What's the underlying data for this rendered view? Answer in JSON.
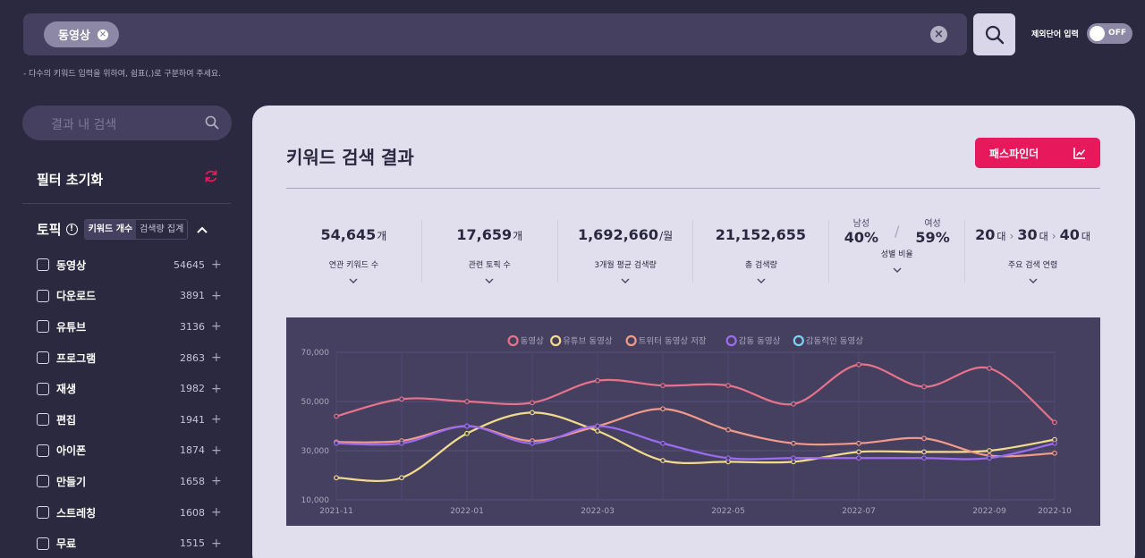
{
  "search": {
    "tag": "동영상",
    "hint": "- 다수의 키워드 입력을 위하여, 쉼표(,)로 구분하여 주세요.",
    "exclude_label": "제외단어 입력",
    "toggle_state": "OFF"
  },
  "sidebar": {
    "search_placeholder": "결과 내 검색",
    "filter_reset": "필터 초기화",
    "topic_title": "토픽",
    "seg_keyword": "키워드 개수",
    "seg_volume": "검색량 집계",
    "items": [
      {
        "name": "동영상",
        "count": "54645"
      },
      {
        "name": "다운로드",
        "count": "3891"
      },
      {
        "name": "유튜브",
        "count": "3136"
      },
      {
        "name": "프로그램",
        "count": "2863"
      },
      {
        "name": "재생",
        "count": "1982"
      },
      {
        "name": "편집",
        "count": "1941"
      },
      {
        "name": "아이폰",
        "count": "1874"
      },
      {
        "name": "만들기",
        "count": "1658"
      },
      {
        "name": "스트레칭",
        "count": "1608"
      },
      {
        "name": "무료",
        "count": "1515"
      }
    ]
  },
  "main": {
    "title": "키워드 검색 결과",
    "pathfinder": "패스파인더",
    "stats": [
      {
        "value": "54,645",
        "unit": "개",
        "label": "연관 키워드 수"
      },
      {
        "value": "17,659",
        "unit": "개",
        "label": "관련 토픽 수"
      },
      {
        "value": "1,692,660",
        "unit": "/월",
        "label": "3개월 평균 검색량"
      },
      {
        "value": "21,152,655",
        "unit": "",
        "label": "총 검색량"
      }
    ],
    "gender": {
      "male_label": "남성",
      "male_value": "40%",
      "female_label": "여성",
      "female_value": "59%",
      "label": "성별 비율"
    },
    "age": {
      "a1": "20",
      "a2": "30",
      "a3": "40",
      "unit": "대",
      "label": "주요 검색 연령"
    }
  },
  "chart_data": {
    "type": "line",
    "title": "",
    "x": [
      "2021-11",
      "2021-12",
      "2022-01",
      "2022-02",
      "2022-03",
      "2022-04",
      "2022-05",
      "2022-06",
      "2022-07",
      "2022-08",
      "2022-09",
      "2022-10"
    ],
    "xticks": [
      "2021-11",
      "2022-01",
      "2022-03",
      "2022-05",
      "2022-07",
      "2022-09",
      "2022-10"
    ],
    "yticks": [
      "10,000",
      "30,000",
      "50,000",
      "70,000"
    ],
    "ylim": [
      10000,
      70000
    ],
    "grid": true,
    "legend": "top",
    "series": [
      {
        "name": "동영상",
        "color": "#e8728b",
        "values": [
          44000,
          51000,
          50000,
          49500,
          58500,
          56500,
          56500,
          49000,
          65000,
          56000,
          63500,
          41500
        ]
      },
      {
        "name": "유튜브 동영상",
        "color": "#f2dc8c",
        "values": [
          19000,
          19000,
          37000,
          45500,
          38000,
          26000,
          25500,
          25500,
          29500,
          29500,
          30000,
          34500
        ]
      },
      {
        "name": "트위터 동영상 저장",
        "color": "#f29a8a",
        "values": [
          33500,
          34000,
          40000,
          34000,
          40000,
          47000,
          38500,
          33000,
          33000,
          35000,
          28000,
          29000
        ]
      },
      {
        "name": "감동 동영상",
        "color": "#9b6cf0",
        "values": [
          33000,
          33000,
          40000,
          33000,
          40000,
          33000,
          27000,
          27000,
          27000,
          27000,
          27000,
          33000
        ]
      },
      {
        "name": "감동적인 동영상",
        "color": "#7fd3f0",
        "values": [
          null,
          null,
          null,
          null,
          null,
          null,
          null,
          null,
          null,
          null,
          null,
          null
        ]
      }
    ]
  }
}
